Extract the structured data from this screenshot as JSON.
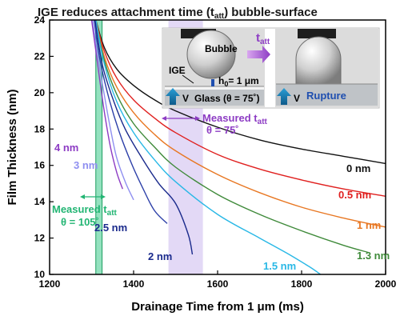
{
  "chart_data": {
    "type": "line",
    "title": "IGE reduces attachment time (t",
    "title_sub": "att",
    "title_tail": ") bubble-surface",
    "xlabel": "Drainage Time from 1 μm (ms)",
    "ylabel": "Film Thickness (nm)",
    "xlim": [
      1200,
      2000
    ],
    "ylim": [
      10,
      24
    ],
    "xticks": [
      "1200",
      "1400",
      "1600",
      "1800",
      "2000"
    ],
    "yticks": [
      "10",
      "12",
      "14",
      "16",
      "18",
      "20",
      "22",
      "24"
    ],
    "grid": false,
    "series": [
      {
        "name": "0 nm",
        "color": "#111111",
        "points": [
          [
            1310,
            24
          ],
          [
            1330,
            22.5
          ],
          [
            1360,
            21.3
          ],
          [
            1400,
            20.4
          ],
          [
            1450,
            19.6
          ],
          [
            1500,
            19.0
          ],
          [
            1600,
            18.1
          ],
          [
            1700,
            17.4
          ],
          [
            1800,
            16.9
          ],
          [
            1900,
            16.5
          ],
          [
            2000,
            16.1
          ]
        ]
      },
      {
        "name": "0.5 nm",
        "color": "#e0201f",
        "points": [
          [
            1310,
            24
          ],
          [
            1330,
            22.3
          ],
          [
            1360,
            20.8
          ],
          [
            1400,
            19.6
          ],
          [
            1450,
            18.6
          ],
          [
            1500,
            17.8
          ],
          [
            1600,
            16.6
          ],
          [
            1700,
            15.8
          ],
          [
            1800,
            15.2
          ],
          [
            1900,
            14.7
          ],
          [
            2000,
            14.3
          ]
        ]
      },
      {
        "name": "1 nm",
        "color": "#e87722",
        "points": [
          [
            1310,
            24
          ],
          [
            1330,
            22.0
          ],
          [
            1360,
            20.3
          ],
          [
            1400,
            18.9
          ],
          [
            1450,
            17.7
          ],
          [
            1500,
            16.8
          ],
          [
            1600,
            15.5
          ],
          [
            1700,
            14.5
          ],
          [
            1800,
            13.7
          ],
          [
            1900,
            13.1
          ],
          [
            2000,
            12.6
          ]
        ]
      },
      {
        "name": "1.3 nm",
        "color": "#3f8a3a",
        "points": [
          [
            1310,
            24
          ],
          [
            1330,
            21.8
          ],
          [
            1360,
            19.9
          ],
          [
            1400,
            18.3
          ],
          [
            1450,
            17.0
          ],
          [
            1500,
            15.9
          ],
          [
            1600,
            14.4
          ],
          [
            1700,
            13.3
          ],
          [
            1800,
            12.4
          ],
          [
            1900,
            11.6
          ],
          [
            1960,
            11.2
          ]
        ]
      },
      {
        "name": "1.5 nm",
        "color": "#29b8e6",
        "points": [
          [
            1310,
            24
          ],
          [
            1330,
            21.6
          ],
          [
            1360,
            19.5
          ],
          [
            1400,
            17.8
          ],
          [
            1450,
            16.3
          ],
          [
            1500,
            15.1
          ],
          [
            1600,
            13.3
          ],
          [
            1700,
            12.0
          ],
          [
            1770,
            11.1
          ],
          [
            1820,
            10.4
          ],
          [
            1845,
            10.0
          ]
        ]
      },
      {
        "name": "2 nm",
        "color": "#1a2a8c",
        "points": [
          [
            1308,
            24
          ],
          [
            1325,
            21.6
          ],
          [
            1350,
            19.7
          ],
          [
            1380,
            18.0
          ],
          [
            1420,
            16.4
          ],
          [
            1460,
            15.0
          ],
          [
            1500,
            13.9
          ],
          [
            1530,
            12.2
          ],
          [
            1540,
            11.1
          ]
        ]
      },
      {
        "name": "2.5 nm",
        "color": "#2c3fa8",
        "points": [
          [
            1306,
            24
          ],
          [
            1320,
            21.8
          ],
          [
            1340,
            19.8
          ],
          [
            1365,
            17.9
          ],
          [
            1395,
            16.1
          ],
          [
            1425,
            14.6
          ],
          [
            1450,
            13.5
          ],
          [
            1480,
            12.8
          ]
        ]
      },
      {
        "name": "3 nm",
        "color": "#8f8ff0",
        "points": [
          [
            1302,
            24
          ],
          [
            1315,
            22.0
          ],
          [
            1330,
            19.9
          ],
          [
            1345,
            18.0
          ],
          [
            1360,
            16.4
          ],
          [
            1380,
            15.1
          ],
          [
            1400,
            14.1
          ]
        ]
      },
      {
        "name": "4 nm",
        "color": "#8d3cc4",
        "points": [
          [
            1300,
            24
          ],
          [
            1310,
            22.3
          ],
          [
            1320,
            20.6
          ],
          [
            1332,
            18.7
          ],
          [
            1345,
            17.0
          ],
          [
            1360,
            15.6
          ],
          [
            1374,
            14.7
          ]
        ]
      }
    ],
    "bands": [
      {
        "x": [
          1310,
          1325
        ],
        "color": "#3cc98a"
      },
      {
        "x": [
          1483,
          1565
        ],
        "color": "#c8b4ee"
      }
    ],
    "annotations": [
      {
        "text": "Measured t",
        "sub": "att",
        "line2": "θ = 75˚",
        "color": "#8d3cc4"
      },
      {
        "text": "Measured t",
        "sub": "att",
        "line2": "θ = 105˚",
        "color": "#22b573"
      }
    ]
  },
  "inset": {
    "bubble_label": "Bubble",
    "ige_label": "IGE",
    "h0_label": "h",
    "h0_sub": "0",
    "h0_value": "= 1 μm",
    "v_label": "V",
    "glass_label": "Glass (θ = 75˚)",
    "tatt_label": "t",
    "tatt_sub": "att",
    "v2_label": "V",
    "rupture_label": "Rupture"
  }
}
